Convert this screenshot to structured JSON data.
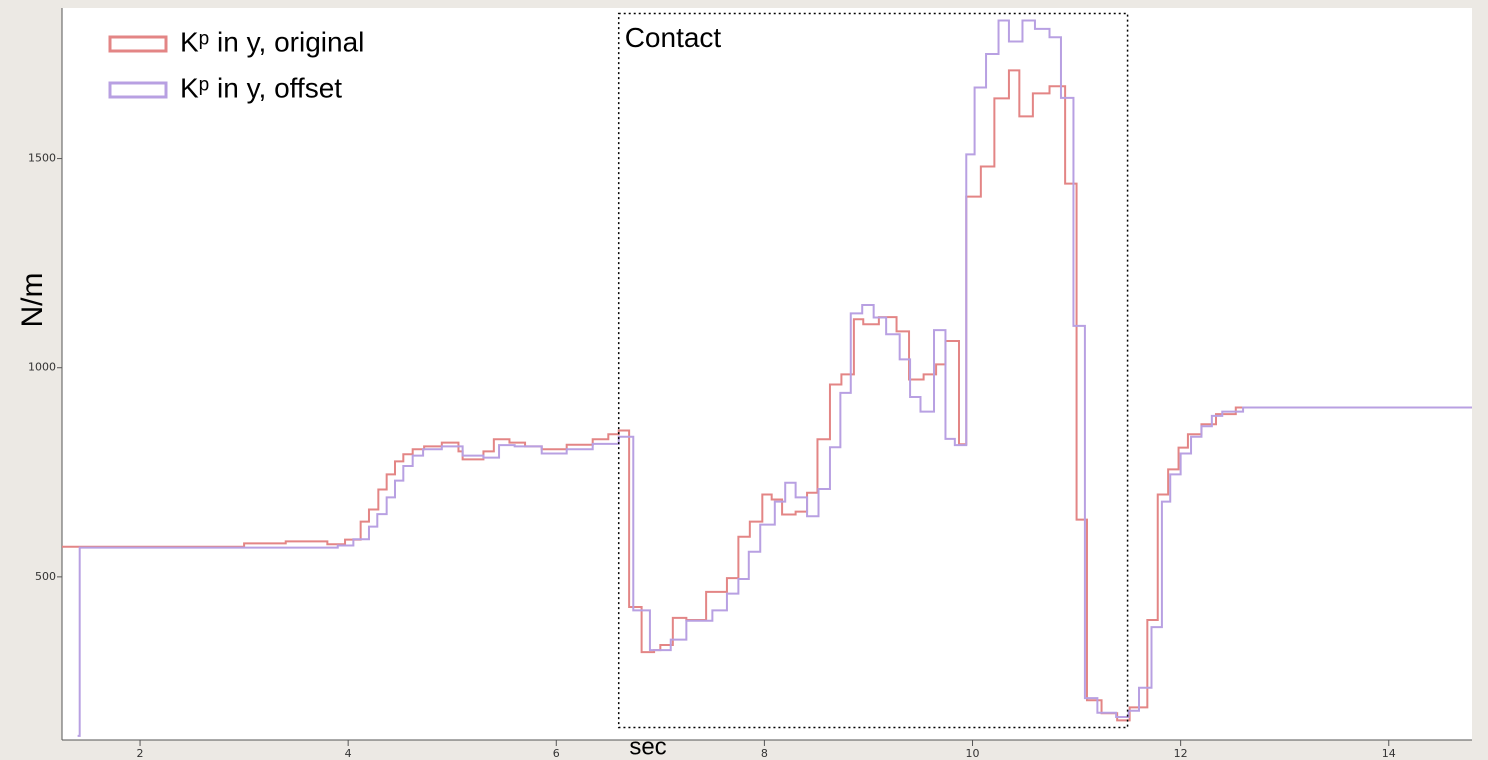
{
  "chart_data": {
    "type": "step",
    "xlabel": "sec",
    "ylabel": "N/m",
    "xlim": [
      1.25,
      14.8
    ],
    "ylim": [
      110,
      1860
    ],
    "xticks": [
      2,
      4,
      6,
      8,
      10,
      12,
      14
    ],
    "yticks": [
      500,
      1000,
      1500
    ],
    "legend": "top-left",
    "annotation": {
      "text": "Contact",
      "x": [
        6.6,
        11.49
      ],
      "y": [
        140,
        1847
      ]
    },
    "series": [
      {
        "name": "Kᵖ in y, original",
        "color": "#e38585",
        "x": [
          1.25,
          3.0,
          3.4,
          3.8,
          3.97,
          4.12,
          4.2,
          4.29,
          4.37,
          4.45,
          4.53,
          4.62,
          4.73,
          4.9,
          5.06,
          5.1,
          5.3,
          5.4,
          5.55,
          5.7,
          5.86,
          6.1,
          6.35,
          6.5,
          6.6,
          6.7,
          6.82,
          6.94,
          7.0,
          7.12,
          7.25,
          7.44,
          7.64,
          7.75,
          7.86,
          7.98,
          8.07,
          8.17,
          8.3,
          8.41,
          8.51,
          8.63,
          8.74,
          8.86,
          8.95,
          9.1,
          9.27,
          9.39,
          9.53,
          9.65,
          9.74,
          9.87,
          9.94,
          10.08,
          10.21,
          10.35,
          10.45,
          10.58,
          10.74,
          10.89,
          11.0,
          11.1,
          11.24,
          11.39,
          11.51,
          11.68,
          11.78,
          11.88,
          11.98,
          12.07,
          12.2,
          12.34,
          12.53,
          14.8
        ],
        "values": [
          572,
          580,
          585,
          578,
          589,
          632,
          661,
          709,
          745,
          776,
          793,
          805,
          812,
          821,
          800,
          781,
          800,
          829,
          821,
          812,
          805,
          816,
          829,
          841,
          850,
          428,
          320,
          325,
          337,
          402,
          397,
          464,
          497,
          596,
          632,
          697,
          685,
          649,
          656,
          701,
          829,
          960,
          984,
          1116,
          1104,
          1121,
          1087,
          972,
          984,
          1008,
          1064,
          817,
          1409,
          1481,
          1644,
          1711,
          1601,
          1656,
          1673,
          1440,
          637,
          205,
          174,
          157,
          188,
          397,
          697,
          757,
          809,
          841,
          865,
          889,
          905,
          905
        ]
      },
      {
        "name": "Kᵖ in y, offset",
        "color": "#b8a0e2",
        "x": [
          1.4,
          1.42,
          3.9,
          4.05,
          4.2,
          4.28,
          4.37,
          4.45,
          4.53,
          4.62,
          4.72,
          4.9,
          5.1,
          5.3,
          5.45,
          5.6,
          5.86,
          6.1,
          6.35,
          6.6,
          6.74,
          6.9,
          7.1,
          7.25,
          7.5,
          7.64,
          7.75,
          7.85,
          7.96,
          8.1,
          8.2,
          8.3,
          8.41,
          8.52,
          8.63,
          8.73,
          8.83,
          8.94,
          9.05,
          9.17,
          9.3,
          9.4,
          9.5,
          9.63,
          9.74,
          9.83,
          9.94,
          10.02,
          10.13,
          10.25,
          10.35,
          10.48,
          10.6,
          10.74,
          10.85,
          10.97,
          11.08,
          11.2,
          11.38,
          11.5,
          11.6,
          11.72,
          11.82,
          11.9,
          12.0,
          12.1,
          12.2,
          12.3,
          12.4,
          12.6,
          14.8
        ],
        "values": [
          120,
          570,
          575,
          590,
          620,
          650,
          690,
          730,
          765,
          790,
          805,
          812,
          790,
          785,
          815,
          812,
          795,
          805,
          818,
          835,
          420,
          325,
          350,
          395,
          420,
          460,
          495,
          560,
          625,
          680,
          725,
          690,
          645,
          710,
          810,
          940,
          1130,
          1150,
          1120,
          1080,
          1020,
          930,
          895,
          1090,
          830,
          815,
          1510,
          1670,
          1750,
          1830,
          1780,
          1830,
          1810,
          1790,
          1645,
          1100,
          210,
          175,
          165,
          180,
          235,
          380,
          680,
          745,
          795,
          835,
          860,
          885,
          895,
          905,
          905
        ]
      }
    ]
  }
}
